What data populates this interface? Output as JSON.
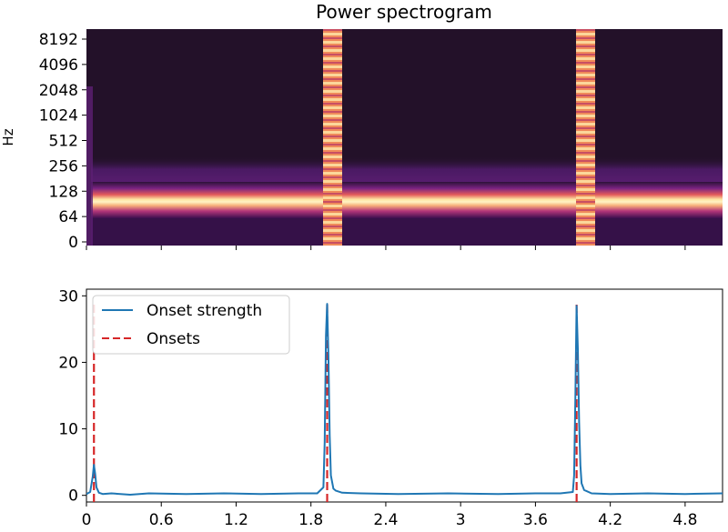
{
  "chart_data": [
    {
      "type": "heatmap",
      "title": "Power spectrogram",
      "xlabel": "",
      "ylabel": "Hz",
      "y_scale": "log",
      "y_ticks": [
        "0",
        "64",
        "128",
        "256",
        "512",
        "1024",
        "2048",
        "4096",
        "8192"
      ],
      "x_range": [
        0,
        5.1
      ],
      "colormap": "magma",
      "features": {
        "signal_start_s": 0.05,
        "tone_band_hz": [
          80,
          140
        ],
        "harmonic_band_hz": [
          180,
          350
        ],
        "broadband_bursts_s": [
          [
            1.9,
            2.0
          ],
          [
            3.88,
            3.98
          ]
        ]
      }
    },
    {
      "type": "line",
      "title": "",
      "xlabel": "",
      "ylabel": "",
      "x_ticks": [
        "0",
        "0.6",
        "1.2",
        "1.8",
        "2.4",
        "3",
        "3.6",
        "4.2",
        "4.8"
      ],
      "xlim": [
        0,
        5.1
      ],
      "ylim": [
        -1,
        31
      ],
      "y_ticks": [
        "0",
        "10",
        "20",
        "30"
      ],
      "legend_position": "upper-left",
      "grid": false,
      "series": [
        {
          "name": "Onset strength",
          "color": "#1f77b4",
          "style": "solid",
          "x": [
            0,
            0.03,
            0.05,
            0.06,
            0.07,
            0.08,
            0.1,
            0.13,
            0.2,
            0.35,
            0.5,
            0.8,
            1.1,
            1.4,
            1.7,
            1.85,
            1.9,
            1.91,
            1.92,
            1.93,
            1.94,
            1.95,
            1.96,
            1.98,
            2.0,
            2.05,
            2.2,
            2.5,
            2.9,
            3.3,
            3.6,
            3.8,
            3.9,
            3.91,
            3.92,
            3.93,
            3.94,
            3.95,
            3.96,
            3.97,
            3.99,
            4.05,
            4.2,
            4.5,
            4.8,
            5.1
          ],
          "y": [
            0.2,
            0.5,
            2.8,
            4.6,
            3.2,
            1.2,
            0.4,
            0.2,
            0.3,
            0.1,
            0.3,
            0.2,
            0.3,
            0.2,
            0.3,
            0.3,
            1.2,
            8.0,
            24.0,
            28.8,
            21.0,
            9.0,
            3.0,
            1.0,
            0.7,
            0.4,
            0.3,
            0.2,
            0.3,
            0.2,
            0.3,
            0.3,
            0.5,
            3.0,
            15.0,
            28.5,
            22.0,
            11.0,
            4.5,
            1.8,
            0.8,
            0.3,
            0.2,
            0.3,
            0.2,
            0.3
          ]
        },
        {
          "name": "Onsets",
          "color": "#d62728",
          "style": "dashed",
          "type": "vlines",
          "x": [
            0.06,
            1.93,
            3.93
          ],
          "ymin": -1,
          "ymax": 29
        }
      ]
    }
  ]
}
